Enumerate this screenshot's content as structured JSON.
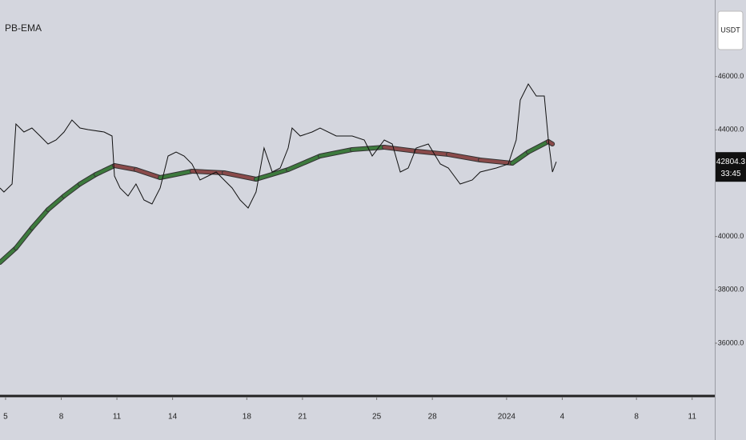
{
  "chart_data": {
    "type": "line",
    "title": "PB-EMA",
    "currency": "USDT",
    "last_value": 42804.3,
    "countdown": "33:45",
    "xlim": [
      -0.3,
      38.22
    ],
    "ylim": [
      34080,
      48870
    ],
    "xticks": [
      {
        "value": 0,
        "label": "5"
      },
      {
        "value": 3,
        "label": "8"
      },
      {
        "value": 6,
        "label": "11"
      },
      {
        "value": 9,
        "label": "14"
      },
      {
        "value": 13,
        "label": "18"
      },
      {
        "value": 16,
        "label": "21"
      },
      {
        "value": 20,
        "label": "25"
      },
      {
        "value": 23,
        "label": "28"
      },
      {
        "value": 27,
        "label": "2024"
      },
      {
        "value": 30,
        "label": "4"
      },
      {
        "value": 34,
        "label": "8"
      },
      {
        "value": 37,
        "label": "11"
      }
    ],
    "yticks": [
      {
        "value": 36000,
        "label": "36000.0"
      },
      {
        "value": 38000,
        "label": "38000.0"
      },
      {
        "value": 40000,
        "label": "40000.0"
      },
      {
        "value": 44000,
        "label": "44000.0"
      },
      {
        "value": 46000,
        "label": "46000.0"
      }
    ],
    "series": [
      {
        "color": "#111111",
        "x": [
          -0.3,
          -0.09,
          0.35,
          0.56,
          0.99,
          1.42,
          1.86,
          2.29,
          2.72,
          3.15,
          3.58,
          4.01,
          4.44,
          5.31,
          5.74,
          5.87,
          6.17,
          6.6,
          7.03,
          7.46,
          7.89,
          8.33,
          8.76,
          9.19,
          9.62,
          10.05,
          10.48,
          10.91,
          11.35,
          11.78,
          12.21,
          12.64,
          13.07,
          13.5,
          13.93,
          14.37,
          14.8,
          15.23,
          15.44,
          15.88,
          16.52,
          16.95,
          17.82,
          18.68,
          19.33,
          19.76,
          20.41,
          20.84,
          21.27,
          21.7,
          22.13,
          22.78,
          23.43,
          23.86,
          24.5,
          25.15,
          25.58,
          26.45,
          27.09,
          27.52,
          27.74,
          28.17,
          28.6,
          29.03,
          29.25,
          29.47,
          29.68
        ],
        "values": [
          41820,
          41670,
          41970,
          44220,
          43920,
          44070,
          43770,
          43470,
          43620,
          43920,
          44370,
          44070,
          44010,
          43920,
          43770,
          42270,
          41820,
          41520,
          41970,
          41370,
          41220,
          41820,
          43020,
          43170,
          43020,
          42720,
          42120,
          42270,
          42420,
          42120,
          41820,
          41370,
          41070,
          41670,
          43320,
          42420,
          42570,
          43320,
          44070,
          43770,
          43920,
          44070,
          43770,
          43770,
          43620,
          43020,
          43620,
          43470,
          42420,
          42570,
          43320,
          43470,
          42720,
          42570,
          41970,
          42120,
          42420,
          42570,
          42720,
          43620,
          45120,
          45720,
          45270,
          45270,
          43620,
          42420,
          42804.3
        ]
      },
      {
        "up_color": "#3d7a3d",
        "down_color": "#8a4a4a",
        "x": [
          -0.3,
          0.56,
          1.42,
          2.29,
          3.15,
          4.01,
          4.87,
          5.87,
          7.03,
          8.33,
          10.05,
          11.78,
          13.5,
          15.23,
          16.95,
          18.68,
          20.41,
          22.13,
          23.86,
          25.58,
          27.31,
          28.17,
          29.25,
          29.47
        ],
        "values": [
          39030,
          39570,
          40320,
          41010,
          41520,
          41970,
          42330,
          42660,
          42510,
          42210,
          42450,
          42390,
          42150,
          42510,
          43020,
          43260,
          43350,
          43200,
          43080,
          42870,
          42750,
          43170,
          43560,
          43470
        ]
      }
    ]
  }
}
